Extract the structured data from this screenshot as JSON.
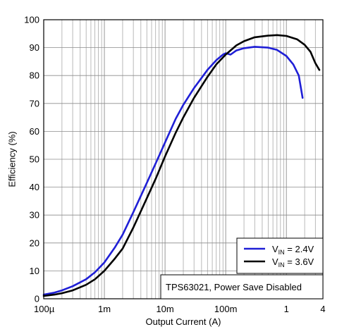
{
  "chart_data": {
    "type": "line",
    "xlabel": "Output Current (A)",
    "ylabel": "Efficiency (%)",
    "xscale": "log",
    "xlim": [
      0.0001,
      4
    ],
    "ylim": [
      0,
      100
    ],
    "grid": true,
    "legend_position": "bottom-right",
    "x_tick_labels": [
      "100µ",
      "1m",
      "10m",
      "100m",
      "1",
      "4"
    ],
    "x_tick_values": [
      0.0001,
      0.001,
      0.01,
      0.1,
      1,
      4
    ],
    "y_ticks": [
      0,
      10,
      20,
      30,
      40,
      50,
      60,
      70,
      80,
      90,
      100
    ],
    "annotation": "TPS63021, Power Save Disabled",
    "series": [
      {
        "name": "VIN = 2.4V",
        "label_main": "V",
        "label_sub": "IN",
        "label_rest": " = 2.4V",
        "color": "#1f1fd6",
        "x": [
          0.0001,
          0.00015,
          0.0002,
          0.0003,
          0.0005,
          0.0007,
          0.001,
          0.0015,
          0.002,
          0.003,
          0.005,
          0.007,
          0.01,
          0.015,
          0.02,
          0.03,
          0.05,
          0.07,
          0.09,
          0.1,
          0.12,
          0.15,
          0.2,
          0.3,
          0.5,
          0.7,
          1.0,
          1.3,
          1.6,
          1.85
        ],
        "y": [
          1.5,
          2.2,
          3.0,
          4.5,
          7.0,
          9.5,
          13.0,
          18.5,
          23.0,
          31.0,
          41.5,
          48.5,
          56.0,
          64.5,
          69.5,
          75.5,
          82.0,
          85.5,
          87.5,
          88.0,
          87.5,
          89.0,
          89.8,
          90.3,
          90.0,
          89.2,
          87.0,
          84.0,
          80.0,
          72.0
        ]
      },
      {
        "name": "VIN = 3.6V",
        "label_main": "V",
        "label_sub": "IN",
        "label_rest": " = 3.6V",
        "color": "#000000",
        "x": [
          0.0001,
          0.00015,
          0.0002,
          0.0003,
          0.0005,
          0.0007,
          0.001,
          0.0015,
          0.002,
          0.003,
          0.005,
          0.007,
          0.01,
          0.015,
          0.02,
          0.03,
          0.05,
          0.07,
          0.1,
          0.15,
          0.2,
          0.3,
          0.5,
          0.7,
          1.0,
          1.5,
          2.0,
          2.5,
          3.0,
          3.5
        ],
        "y": [
          1.0,
          1.5,
          2.0,
          3.0,
          5.0,
          7.0,
          10.0,
          14.5,
          18.0,
          25.5,
          36.0,
          43.0,
          51.0,
          59.5,
          65.0,
          72.0,
          79.5,
          84.0,
          87.5,
          90.8,
          92.3,
          93.7,
          94.3,
          94.5,
          94.2,
          93.0,
          91.0,
          88.5,
          84.5,
          82.0
        ]
      }
    ]
  }
}
